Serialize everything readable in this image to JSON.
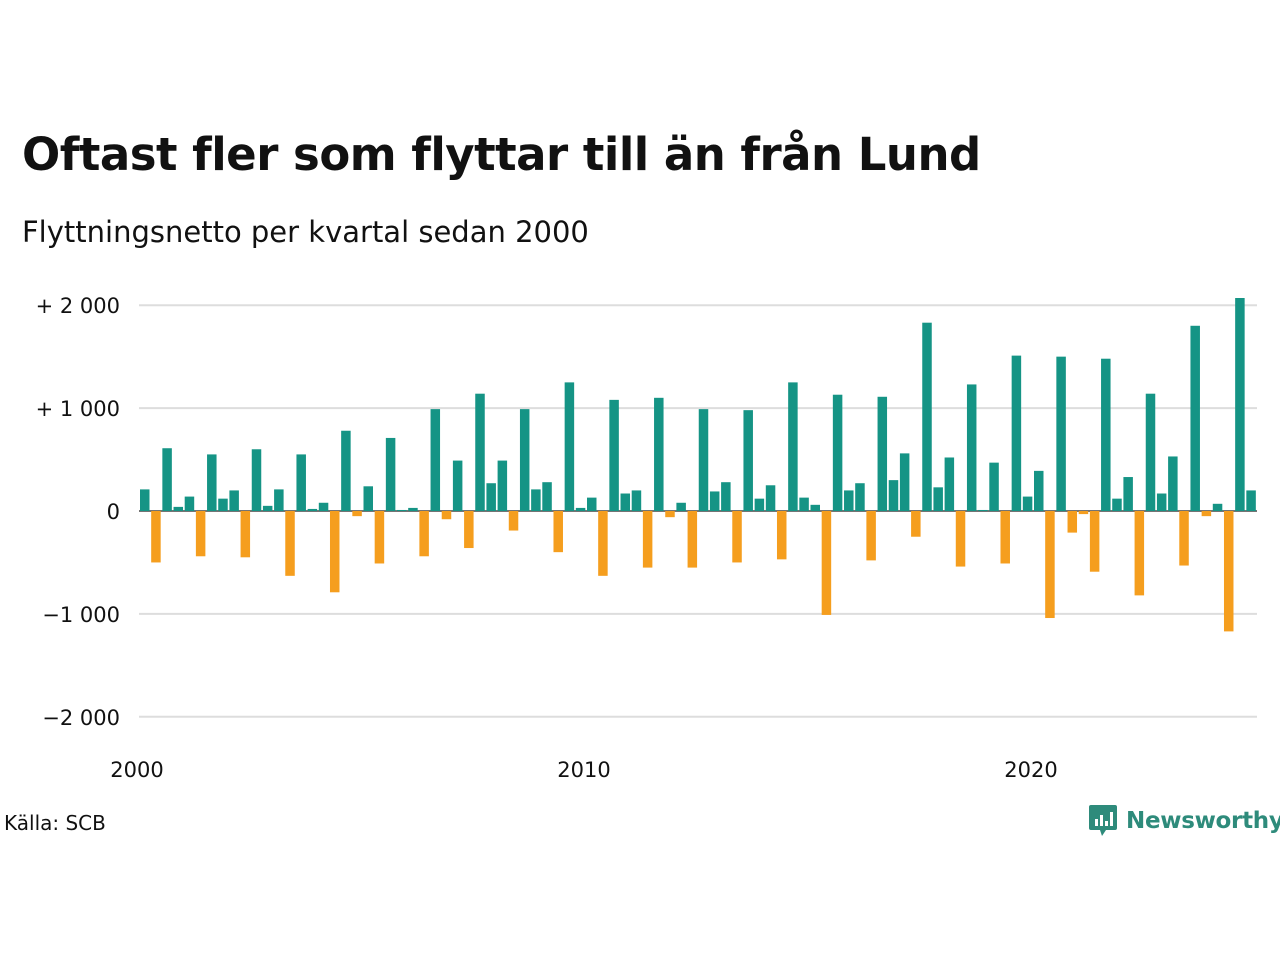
{
  "title": "Oftast fler som flyttar till än från Lund",
  "subtitle": "Flyttningsnetto per kvartal sedan 2000",
  "source": "Källa: SCB",
  "brand": "Newsworthy",
  "colors": {
    "positive": "#159485",
    "negative": "#f59e1e",
    "gridline": "#dddddd",
    "brand": "#2e8b7b"
  },
  "chart_data": {
    "type": "bar",
    "title": "Oftast fler som flyttar till än från Lund",
    "subtitle": "Flyttningsnetto per kvartal sedan 2000",
    "xlabel": "",
    "ylabel": "",
    "start_year": 2000,
    "ylim": [
      -2100,
      2100
    ],
    "grid": true,
    "legend": "none",
    "y_ticks": [
      {
        "value": 2000,
        "label": "+ 2 000"
      },
      {
        "value": 1000,
        "label": "+ 1 000"
      },
      {
        "value": 0,
        "label": "0"
      },
      {
        "value": -1000,
        "label": "−1 000"
      },
      {
        "value": -2000,
        "label": "−2 000"
      }
    ],
    "x_ticks": [
      {
        "value": 2000,
        "label": "2000"
      },
      {
        "value": 2010,
        "label": "2010"
      },
      {
        "value": 2020,
        "label": "2020"
      }
    ],
    "categories": [
      "2000 Q1",
      "2000 Q2",
      "2000 Q3",
      "2000 Q4",
      "2001 Q1",
      "2001 Q2",
      "2001 Q3",
      "2001 Q4",
      "2002 Q1",
      "2002 Q2",
      "2002 Q3",
      "2002 Q4",
      "2003 Q1",
      "2003 Q2",
      "2003 Q3",
      "2003 Q4",
      "2004 Q1",
      "2004 Q2",
      "2004 Q3",
      "2004 Q4",
      "2005 Q1",
      "2005 Q2",
      "2005 Q3",
      "2005 Q4",
      "2006 Q1",
      "2006 Q2",
      "2006 Q3",
      "2006 Q4",
      "2007 Q1",
      "2007 Q2",
      "2007 Q3",
      "2007 Q4",
      "2008 Q1",
      "2008 Q2",
      "2008 Q3",
      "2008 Q4",
      "2009 Q1",
      "2009 Q2",
      "2009 Q3",
      "2009 Q4",
      "2010 Q1",
      "2010 Q2",
      "2010 Q3",
      "2010 Q4",
      "2011 Q1",
      "2011 Q2",
      "2011 Q3",
      "2011 Q4",
      "2012 Q1",
      "2012 Q2",
      "2012 Q3",
      "2012 Q4",
      "2013 Q1",
      "2013 Q2",
      "2013 Q3",
      "2013 Q4",
      "2014 Q1",
      "2014 Q2",
      "2014 Q3",
      "2014 Q4",
      "2015 Q1",
      "2015 Q2",
      "2015 Q3",
      "2015 Q4",
      "2016 Q1",
      "2016 Q2",
      "2016 Q3",
      "2016 Q4",
      "2017 Q1",
      "2017 Q2",
      "2017 Q3",
      "2017 Q4",
      "2018 Q1",
      "2018 Q2",
      "2018 Q3",
      "2018 Q4",
      "2019 Q1",
      "2019 Q2",
      "2019 Q3",
      "2019 Q4",
      "2020 Q1",
      "2020 Q2",
      "2020 Q3",
      "2020 Q4",
      "2021 Q1",
      "2021 Q2",
      "2021 Q3",
      "2021 Q4",
      "2022 Q1",
      "2022 Q2",
      "2022 Q3",
      "2022 Q4",
      "2023 Q1",
      "2023 Q2",
      "2023 Q3",
      "2023 Q4",
      "2024 Q1",
      "2024 Q2",
      "2024 Q3",
      "2024 Q4"
    ],
    "values": [
      210,
      -500,
      610,
      40,
      140,
      -440,
      550,
      120,
      200,
      -450,
      600,
      50,
      210,
      -630,
      550,
      20,
      80,
      -790,
      780,
      -50,
      240,
      -510,
      710,
      10,
      30,
      -440,
      990,
      -80,
      490,
      -360,
      1140,
      270,
      490,
      -190,
      990,
      210,
      280,
      -400,
      1250,
      30,
      130,
      -630,
      1080,
      170,
      200,
      -550,
      1100,
      -60,
      80,
      -550,
      990,
      190,
      280,
      -500,
      980,
      120,
      250,
      -470,
      1250,
      130,
      60,
      -1010,
      1130,
      200,
      270,
      -480,
      1110,
      300,
      560,
      -250,
      1830,
      230,
      520,
      -540,
      1230,
      10,
      470,
      -510,
      1510,
      140,
      390,
      -1040,
      1500,
      -210,
      -30,
      -590,
      1480,
      120,
      330,
      -820,
      1140,
      170,
      530,
      -530,
      1800,
      -50,
      70,
      -1170,
      2070,
      200
    ]
  }
}
